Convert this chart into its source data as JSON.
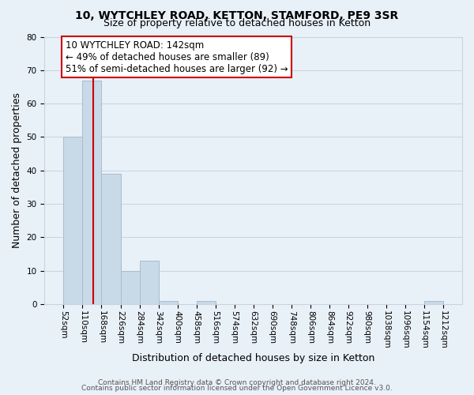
{
  "title": "10, WYTCHLEY ROAD, KETTON, STAMFORD, PE9 3SR",
  "subtitle": "Size of property relative to detached houses in Ketton",
  "xlabel": "Distribution of detached houses by size in Ketton",
  "ylabel": "Number of detached properties",
  "bin_edges": [
    52,
    110,
    168,
    226,
    284,
    342,
    400,
    458,
    516,
    574,
    632,
    690,
    748,
    806,
    864,
    922,
    980,
    1038,
    1096,
    1154,
    1212
  ],
  "bar_heights": [
    50,
    67,
    39,
    10,
    13,
    1,
    0,
    1,
    0,
    0,
    0,
    0,
    0,
    0,
    0,
    0,
    0,
    0,
    0,
    1
  ],
  "bar_color": "#c8d9e8",
  "bar_edge_color": "#aabccc",
  "property_size": 142,
  "red_line_color": "#cc0000",
  "annotation_line1": "10 WYTCHLEY ROAD: 142sqm",
  "annotation_line2": "← 49% of detached houses are smaller (89)",
  "annotation_line3": "51% of semi-detached houses are larger (92) →",
  "annotation_box_color": "#ffffff",
  "annotation_box_edge_color": "#cc0000",
  "ylim": [
    0,
    80
  ],
  "yticks": [
    0,
    10,
    20,
    30,
    40,
    50,
    60,
    70,
    80
  ],
  "grid_color": "#c8d4e0",
  "background_color": "#e8f0f8",
  "footer_line1": "Contains HM Land Registry data © Crown copyright and database right 2024.",
  "footer_line2": "Contains public sector information licensed under the Open Government Licence v3.0.",
  "title_fontsize": 10,
  "subtitle_fontsize": 9,
  "axis_label_fontsize": 9,
  "tick_fontsize": 7.5,
  "annotation_fontsize": 8.5,
  "footer_fontsize": 6.5
}
